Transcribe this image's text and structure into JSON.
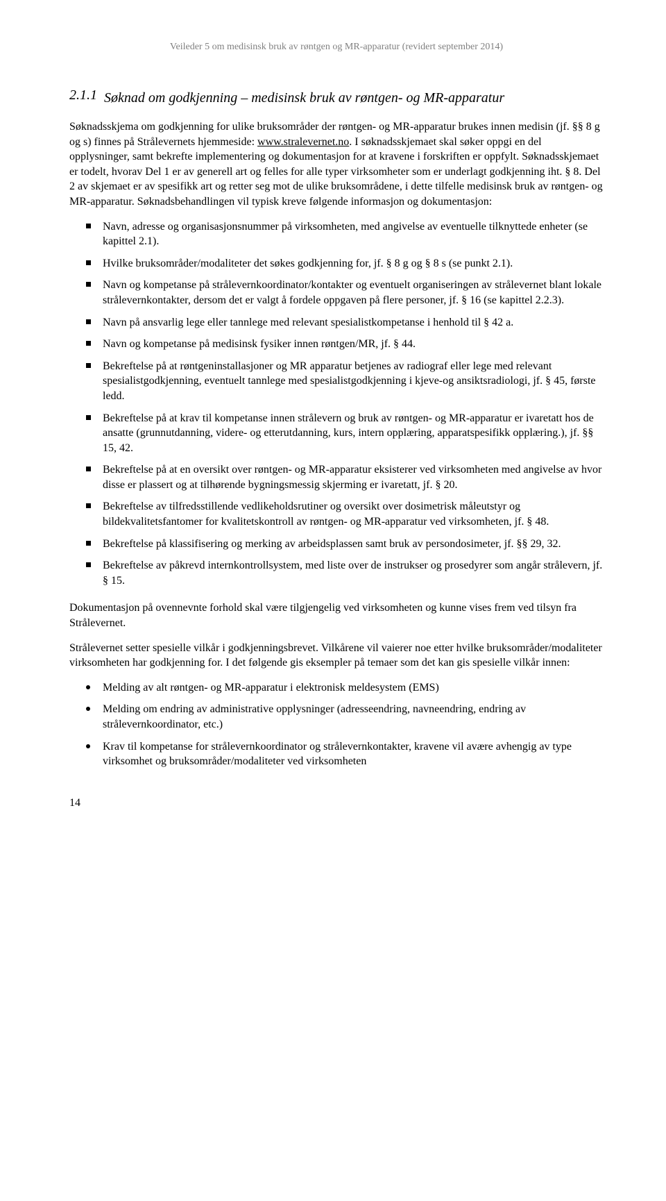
{
  "header": {
    "text": "Veileder 5 om medisinsk bruk av røntgen og MR-apparatur (revidert september 2014)"
  },
  "section": {
    "number": "2.1.1",
    "title": "Søknad om godkjenning – medisinsk bruk av røntgen- og MR-apparatur"
  },
  "intro": {
    "p1a": "Søknadsskjema om godkjenning for ulike bruksområder der røntgen- og MR-apparatur brukes innen medisin (jf. §§ 8 g og s) finnes på Strålevernets hjemmeside: ",
    "p1link": "www.stralevernet.no",
    "p1b": ". I søknadsskjemaet skal søker oppgi en del opplysninger, samt bekrefte implementering og dokumentasjon for at kravene i forskriften er oppfylt. Søknadsskjemaet er todelt, hvorav Del 1 er av generell art og felles for alle typer virksomheter som er underlagt godkjenning iht. § 8. Del 2 av skjemaet er av spesifikk art og retter seg mot de ulike bruksområdene, i dette tilfelle medisinsk bruk av røntgen- og MR-apparatur. Søknadsbehandlingen vil typisk kreve følgende informasjon og dokumentasjon:"
  },
  "bullets1": [
    "Navn, adresse og organisasjonsnummer på virksomheten, med angivelse av eventuelle tilknyttede enheter (se kapittel 2.1).",
    "Hvilke bruksområder/modaliteter det søkes godkjenning for, jf. § 8 g og § 8 s (se punkt 2.1).",
    "Navn og kompetanse på strålevernkoordinator/kontakter og eventuelt organiseringen av strålevernet blant lokale strålevernkontakter, dersom det er valgt å fordele oppgaven på flere personer, jf. § 16 (se kapittel 2.2.3).",
    "Navn på ansvarlig lege eller tannlege med relevant spesialistkompetanse i henhold til § 42 a.",
    "Navn og kompetanse på medisinsk fysiker innen røntgen/MR, jf. § 44.",
    "Bekreftelse på at røntgeninstallasjoner og MR apparatur betjenes av radiograf eller lege med relevant spesialistgodkjenning, eventuelt tannlege med spesialistgodkjenning i kjeve-og ansiktsradiologi, jf. § 45, første ledd.",
    "Bekreftelse på at krav til kompetanse innen strålevern og bruk av røntgen- og MR-apparatur er ivaretatt hos de ansatte (grunnutdanning, videre- og etterutdanning, kurs, intern opplæring, apparatspesifikk opplæring.), jf. §§ 15, 42.",
    "Bekreftelse på at en oversikt over røntgen- og MR-apparatur eksisterer ved virksomheten med angivelse av hvor disse er plassert og at tilhørende bygningsmessig skjerming er ivaretatt, jf. § 20.",
    "Bekreftelse av tilfredsstillende vedlikeholdsrutiner og oversikt over dosimetrisk måleutstyr og bildekvalitetsfantomer for kvalitetskontroll av røntgen- og MR-apparatur ved virksomheten, jf. § 48.",
    "Bekreftelse på klassifisering og merking av arbeidsplassen samt bruk av persondosimeter, jf. §§ 29, 32.",
    "Bekreftelse av påkrevd internkontrollsystem, med liste over de instrukser og prosedyrer som angår strålevern, jf. § 15."
  ],
  "mid_paragraphs": [
    "Dokumentasjon på ovennevnte forhold skal være tilgjengelig ved virksomheten og kunne vises frem ved tilsyn fra Strålevernet.",
    "Strålevernet setter spesielle vilkår i godkjenningsbrevet. Vilkårene vil vaierer noe etter hvilke bruksområder/modaliteter virksomheten har godkjenning for. I det følgende gis eksempler på temaer som det kan gis spesielle vilkår innen:"
  ],
  "bullets2": [
    "Melding av alt røntgen- og MR-apparatur i elektronisk meldesystem (EMS)",
    "Melding om endring av administrative opplysninger (adresseendring, navneendring, endring av strålevernkoordinator, etc.)",
    "Krav til kompetanse for strålevernkoordinator og strålevernkontakter, kravene vil avære avhengig av type virksomhet og bruksområder/modaliteter ved virksomheten"
  ],
  "page_number": "14"
}
